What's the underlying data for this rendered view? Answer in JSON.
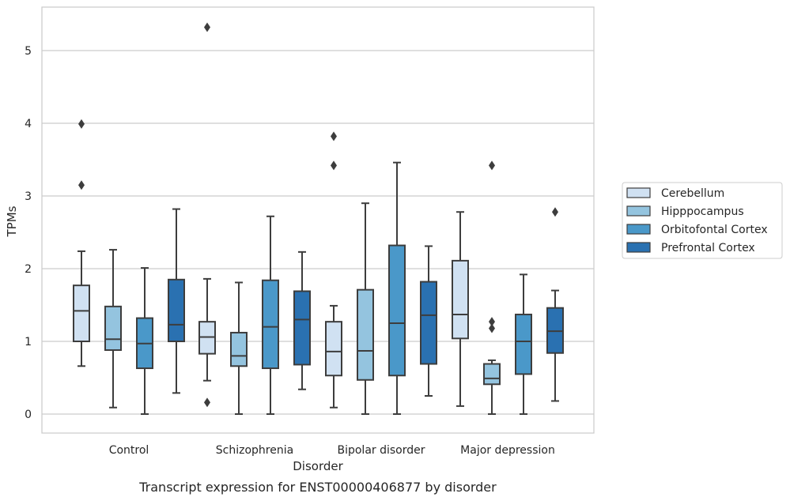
{
  "chart_data": {
    "type": "box",
    "title": "",
    "caption": "Transcript expression for ENST00000406877 by disorder",
    "xlabel": "Disorder",
    "ylabel": "TPMs",
    "ylim": [
      -0.25,
      5.85
    ],
    "yticks": [
      0,
      1,
      2,
      3,
      4,
      5
    ],
    "grid": true,
    "legend_position": "right",
    "categories": [
      "Control",
      "Schizophrenia",
      "Bipolar disorder",
      "Major depression"
    ],
    "series": [
      {
        "name": "Cerebellum",
        "color": "#d0e1f2",
        "boxes": [
          {
            "whisker_low": 0.66,
            "q1": 1.0,
            "median": 1.42,
            "q3": 1.77,
            "whisker_high": 2.24,
            "outliers": [
              3.99,
              3.15
            ]
          },
          {
            "whisker_low": 0.46,
            "q1": 0.83,
            "median": 1.06,
            "q3": 1.27,
            "whisker_high": 1.86,
            "outliers": [
              0.16,
              5.32
            ]
          },
          {
            "whisker_low": 0.09,
            "q1": 0.53,
            "median": 0.86,
            "q3": 1.27,
            "whisker_high": 1.49,
            "outliers": [
              3.82,
              3.42
            ]
          },
          {
            "whisker_low": 0.11,
            "q1": 1.04,
            "median": 1.37,
            "q3": 2.11,
            "whisker_high": 2.78,
            "outliers": []
          }
        ]
      },
      {
        "name": "Hipppocampus",
        "color": "#94c4df",
        "boxes": [
          {
            "whisker_low": 0.09,
            "q1": 0.88,
            "median": 1.03,
            "q3": 1.48,
            "whisker_high": 2.26,
            "outliers": []
          },
          {
            "whisker_low": 0.0,
            "q1": 0.66,
            "median": 0.8,
            "q3": 1.12,
            "whisker_high": 1.81,
            "outliers": []
          },
          {
            "whisker_low": 0.0,
            "q1": 0.47,
            "median": 0.87,
            "q3": 1.71,
            "whisker_high": 2.9,
            "outliers": []
          },
          {
            "whisker_low": 0.0,
            "q1": 0.41,
            "median": 0.49,
            "q3": 0.69,
            "whisker_high": 0.74,
            "outliers": [
              1.27,
              1.18,
              3.42
            ]
          }
        ]
      },
      {
        "name": "Orbitofontal Cortex",
        "color": "#4a98c9",
        "boxes": [
          {
            "whisker_low": 0.0,
            "q1": 0.63,
            "median": 0.97,
            "q3": 1.32,
            "whisker_high": 2.01,
            "outliers": []
          },
          {
            "whisker_low": 0.0,
            "q1": 0.63,
            "median": 1.2,
            "q3": 1.84,
            "whisker_high": 2.72,
            "outliers": []
          },
          {
            "whisker_low": 0.0,
            "q1": 0.53,
            "median": 1.25,
            "q3": 2.32,
            "whisker_high": 3.46,
            "outliers": []
          },
          {
            "whisker_low": 0.0,
            "q1": 0.55,
            "median": 1.0,
            "q3": 1.37,
            "whisker_high": 1.92,
            "outliers": []
          }
        ]
      },
      {
        "name": "Prefrontal Cortex",
        "color": "#2a71b1",
        "boxes": [
          {
            "whisker_low": 0.29,
            "q1": 1.0,
            "median": 1.23,
            "q3": 1.85,
            "whisker_high": 2.82,
            "outliers": []
          },
          {
            "whisker_low": 0.34,
            "q1": 0.68,
            "median": 1.3,
            "q3": 1.69,
            "whisker_high": 2.23,
            "outliers": []
          },
          {
            "whisker_low": 0.25,
            "q1": 0.69,
            "median": 1.36,
            "q3": 1.82,
            "whisker_high": 2.31,
            "outliers": []
          },
          {
            "whisker_low": 0.18,
            "q1": 0.84,
            "median": 1.14,
            "q3": 1.46,
            "whisker_high": 1.7,
            "outliers": [
              2.78
            ]
          }
        ]
      }
    ]
  }
}
